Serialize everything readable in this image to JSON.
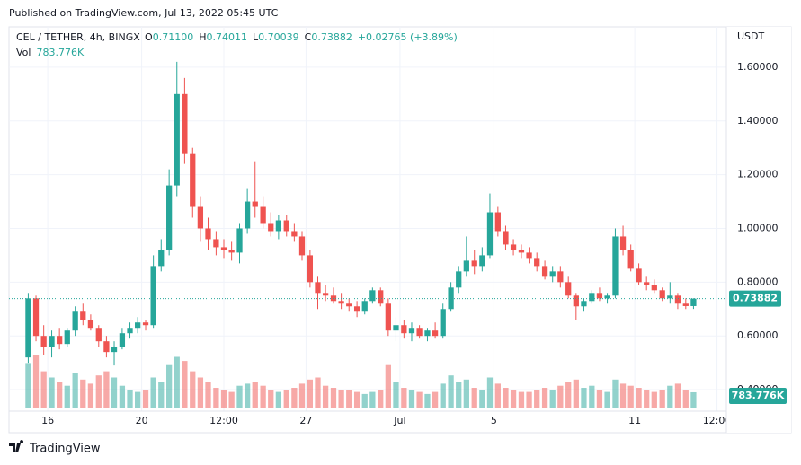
{
  "published": "Published on TradingView.com, Jul 13, 2022 05:45 UTC",
  "footer": "TradingView",
  "chart_data": {
    "type": "candlestick",
    "legend": {
      "symbol": "CEL / TETHER, 4h, BINGX",
      "fields": [
        {
          "key": "O",
          "value": "0.71100"
        },
        {
          "key": "H",
          "value": "0.74011"
        },
        {
          "key": "L",
          "value": "0.70039"
        },
        {
          "key": "C",
          "value": "0.73882"
        }
      ],
      "change": "+0.02765 (+3.89%)",
      "volume_key": "Vol",
      "volume_value": "783.776K"
    },
    "currency": "USDT",
    "up_color": "#26a69a",
    "down_color": "#ef5350",
    "grid": true,
    "xlim": [
      14.35,
      44.9
    ],
    "xticks": [
      16,
      20,
      {
        "value": 23.5,
        "label": "12:00"
      },
      27,
      {
        "value": 31,
        "label": "Jul"
      },
      {
        "value": 35,
        "label": "5"
      },
      {
        "value": 41,
        "label": "11"
      },
      {
        "value": 44.5,
        "label": "12:00"
      }
    ],
    "ylim": [
      0.33,
      1.75
    ],
    "yticks": [
      {
        "value": 0.4,
        "label": "0.40000"
      },
      {
        "value": 0.6,
        "label": "0.60000"
      },
      {
        "value": 0.8,
        "label": "0.80000"
      },
      {
        "value": 1.0,
        "label": "1.00000"
      },
      {
        "value": 1.2,
        "label": "1.20000"
      },
      {
        "value": 1.4,
        "label": "1.40000"
      },
      {
        "value": 1.6,
        "label": "1.60000"
      }
    ],
    "volume_lim": [
      0,
      4000000
    ],
    "x": [
      15.17,
      15.5,
      15.83,
      16.17,
      16.5,
      16.83,
      17.17,
      17.5,
      17.83,
      18.17,
      18.5,
      18.83,
      19.17,
      19.5,
      19.83,
      20.17,
      20.5,
      20.83,
      21.17,
      21.5,
      21.83,
      22.17,
      22.5,
      22.83,
      23.17,
      23.5,
      23.83,
      24.17,
      24.5,
      24.83,
      25.17,
      25.5,
      25.83,
      26.17,
      26.5,
      26.83,
      27.17,
      27.5,
      27.83,
      28.17,
      28.5,
      28.83,
      29.17,
      29.5,
      29.83,
      30.17,
      30.5,
      30.83,
      31.17,
      31.5,
      31.83,
      32.17,
      32.5,
      32.83,
      33.17,
      33.5,
      33.83,
      34.17,
      34.5,
      34.83,
      35.17,
      35.5,
      35.83,
      36.17,
      36.5,
      36.83,
      37.17,
      37.5,
      37.83,
      38.17,
      38.5,
      38.83,
      39.17,
      39.5,
      39.83,
      40.17,
      40.5,
      40.83,
      41.17,
      41.5,
      41.83,
      42.17,
      42.5,
      42.83,
      43.17,
      43.5
    ],
    "ohlc": [
      [
        0.52,
        0.76,
        0.5,
        0.74
      ],
      [
        0.74,
        0.75,
        0.58,
        0.6
      ],
      [
        0.6,
        0.64,
        0.53,
        0.56
      ],
      [
        0.56,
        0.62,
        0.52,
        0.6
      ],
      [
        0.6,
        0.63,
        0.55,
        0.57
      ],
      [
        0.57,
        0.63,
        0.56,
        0.62
      ],
      [
        0.62,
        0.71,
        0.6,
        0.69
      ],
      [
        0.69,
        0.72,
        0.64,
        0.66
      ],
      [
        0.66,
        0.68,
        0.62,
        0.63
      ],
      [
        0.63,
        0.64,
        0.56,
        0.58
      ],
      [
        0.58,
        0.6,
        0.52,
        0.54
      ],
      [
        0.54,
        0.58,
        0.49,
        0.56
      ],
      [
        0.56,
        0.63,
        0.55,
        0.61
      ],
      [
        0.61,
        0.65,
        0.59,
        0.63
      ],
      [
        0.63,
        0.67,
        0.61,
        0.65
      ],
      [
        0.65,
        0.66,
        0.62,
        0.64
      ],
      [
        0.64,
        0.9,
        0.63,
        0.86
      ],
      [
        0.86,
        0.96,
        0.84,
        0.92
      ],
      [
        0.92,
        1.22,
        0.9,
        1.16
      ],
      [
        1.16,
        1.62,
        1.12,
        1.5
      ],
      [
        1.5,
        1.56,
        1.24,
        1.28
      ],
      [
        1.28,
        1.3,
        1.04,
        1.08
      ],
      [
        1.08,
        1.12,
        0.95,
        1.0
      ],
      [
        1.0,
        1.04,
        0.92,
        0.96
      ],
      [
        0.96,
        0.99,
        0.9,
        0.93
      ],
      [
        0.93,
        0.96,
        0.89,
        0.92
      ],
      [
        0.92,
        0.95,
        0.88,
        0.91
      ],
      [
        0.91,
        1.02,
        0.87,
        1.0
      ],
      [
        1.0,
        1.15,
        0.98,
        1.1
      ],
      [
        1.1,
        1.25,
        1.04,
        1.08
      ],
      [
        1.08,
        1.12,
        1.0,
        1.02
      ],
      [
        1.02,
        1.06,
        0.97,
        0.99
      ],
      [
        0.99,
        1.05,
        0.96,
        1.03
      ],
      [
        1.03,
        1.05,
        0.97,
        0.99
      ],
      [
        0.99,
        1.02,
        0.95,
        0.97
      ],
      [
        0.97,
        0.99,
        0.88,
        0.9
      ],
      [
        0.9,
        0.92,
        0.78,
        0.8
      ],
      [
        0.8,
        0.82,
        0.7,
        0.76
      ],
      [
        0.76,
        0.79,
        0.73,
        0.75
      ],
      [
        0.75,
        0.78,
        0.72,
        0.73
      ],
      [
        0.73,
        0.76,
        0.7,
        0.72
      ],
      [
        0.72,
        0.74,
        0.69,
        0.71
      ],
      [
        0.71,
        0.73,
        0.67,
        0.69
      ],
      [
        0.69,
        0.74,
        0.68,
        0.73
      ],
      [
        0.73,
        0.78,
        0.72,
        0.77
      ],
      [
        0.77,
        0.78,
        0.71,
        0.72
      ],
      [
        0.72,
        0.74,
        0.6,
        0.62
      ],
      [
        0.62,
        0.67,
        0.58,
        0.64
      ],
      [
        0.64,
        0.66,
        0.59,
        0.61
      ],
      [
        0.61,
        0.65,
        0.58,
        0.63
      ],
      [
        0.63,
        0.64,
        0.59,
        0.6
      ],
      [
        0.6,
        0.63,
        0.58,
        0.62
      ],
      [
        0.62,
        0.65,
        0.59,
        0.6
      ],
      [
        0.6,
        0.72,
        0.59,
        0.7
      ],
      [
        0.7,
        0.8,
        0.69,
        0.78
      ],
      [
        0.78,
        0.86,
        0.76,
        0.84
      ],
      [
        0.84,
        0.97,
        0.82,
        0.88
      ],
      [
        0.88,
        0.92,
        0.83,
        0.86
      ],
      [
        0.86,
        0.93,
        0.84,
        0.9
      ],
      [
        0.9,
        1.13,
        0.89,
        1.06
      ],
      [
        1.06,
        1.08,
        0.97,
        0.99
      ],
      [
        0.99,
        1.01,
        0.92,
        0.94
      ],
      [
        0.94,
        0.96,
        0.9,
        0.92
      ],
      [
        0.92,
        0.94,
        0.89,
        0.91
      ],
      [
        0.91,
        0.93,
        0.87,
        0.89
      ],
      [
        0.89,
        0.91,
        0.84,
        0.86
      ],
      [
        0.86,
        0.88,
        0.81,
        0.82
      ],
      [
        0.82,
        0.86,
        0.8,
        0.84
      ],
      [
        0.84,
        0.86,
        0.78,
        0.8
      ],
      [
        0.8,
        0.82,
        0.74,
        0.75
      ],
      [
        0.75,
        0.76,
        0.66,
        0.71
      ],
      [
        0.71,
        0.74,
        0.69,
        0.73
      ],
      [
        0.73,
        0.77,
        0.72,
        0.76
      ],
      [
        0.76,
        0.78,
        0.73,
        0.74
      ],
      [
        0.74,
        0.76,
        0.72,
        0.75
      ],
      [
        0.75,
        1.0,
        0.74,
        0.97
      ],
      [
        0.97,
        1.01,
        0.9,
        0.92
      ],
      [
        0.92,
        0.94,
        0.84,
        0.85
      ],
      [
        0.85,
        0.87,
        0.79,
        0.8
      ],
      [
        0.8,
        0.82,
        0.77,
        0.79
      ],
      [
        0.79,
        0.81,
        0.76,
        0.77
      ],
      [
        0.77,
        0.78,
        0.73,
        0.74
      ],
      [
        0.74,
        0.8,
        0.72,
        0.75
      ],
      [
        0.75,
        0.76,
        0.7,
        0.72
      ],
      [
        0.72,
        0.74,
        0.7,
        0.711
      ],
      [
        0.711,
        0.74011,
        0.70039,
        0.73882
      ]
    ],
    "volume": [
      2200000,
      2600000,
      1800000,
      1500000,
      1300000,
      1100000,
      1700000,
      1400000,
      1200000,
      1600000,
      1800000,
      1500000,
      1100000,
      900000,
      800000,
      900000,
      1500000,
      1300000,
      2100000,
      2500000,
      2300000,
      1800000,
      1500000,
      1300000,
      1000000,
      900000,
      800000,
      1100000,
      1200000,
      1300000,
      1100000,
      900000,
      800000,
      900000,
      1000000,
      1200000,
      1400000,
      1500000,
      1100000,
      1000000,
      900000,
      900000,
      800000,
      700000,
      800000,
      900000,
      2100000,
      1300000,
      1000000,
      900000,
      800000,
      700000,
      800000,
      1200000,
      1600000,
      1300000,
      1400000,
      1000000,
      900000,
      1500000,
      1200000,
      1000000,
      900000,
      800000,
      800000,
      900000,
      1000000,
      900000,
      1100000,
      1300000,
      1400000,
      1000000,
      1100000,
      900000,
      800000,
      1400000,
      1200000,
      1100000,
      1000000,
      900000,
      800000,
      900000,
      1100000,
      1200000,
      900000,
      783776
    ]
  }
}
